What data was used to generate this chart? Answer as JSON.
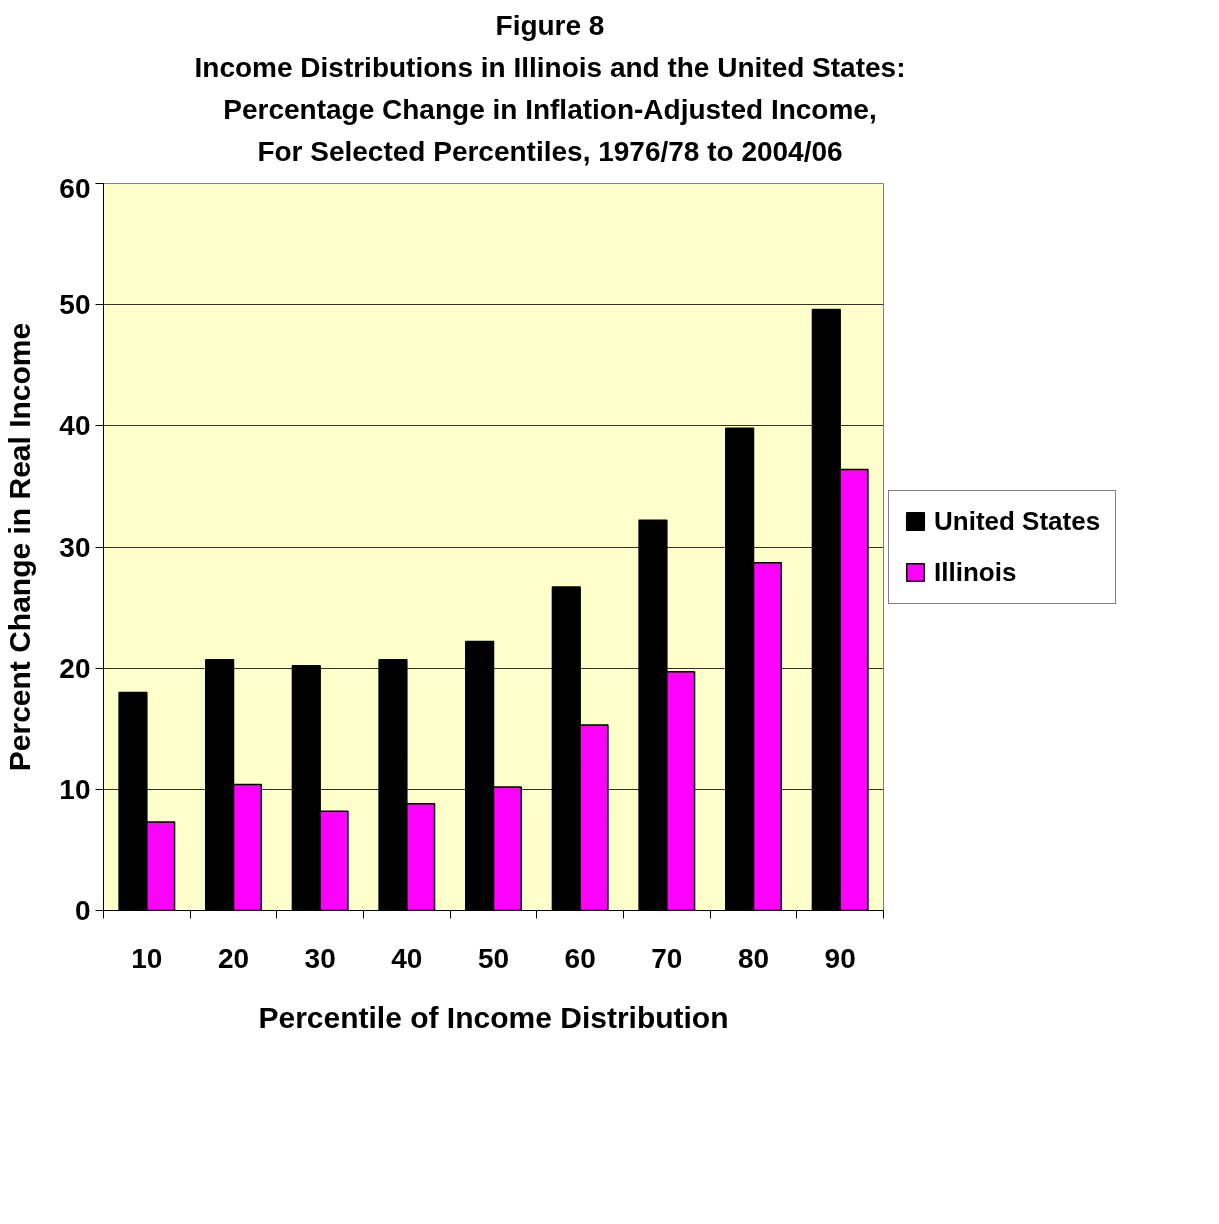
{
  "chart_data": {
    "type": "bar",
    "title": "Figure 8",
    "subtitle": "Income Distributions in Illinois and the United States:\nPercentage Change in Inflation-Adjusted Income,\nFor Selected Percentiles, 1976/78 to 2004/06",
    "xlabel": "Percentile of Income Distribution",
    "ylabel": "Percent Change in Real Income",
    "categories": [
      "10",
      "20",
      "30",
      "40",
      "50",
      "60",
      "70",
      "80",
      "90"
    ],
    "series": [
      {
        "name": "United States",
        "color": "#000000",
        "values": [
          18.0,
          20.7,
          20.2,
          20.7,
          22.2,
          26.7,
          32.2,
          39.8,
          49.6
        ]
      },
      {
        "name": "Illinois",
        "color": "#ff00ff",
        "values": [
          7.3,
          10.4,
          8.2,
          8.8,
          10.2,
          15.3,
          19.7,
          28.7,
          36.4
        ]
      }
    ],
    "ylim": [
      0,
      60
    ],
    "yticks": [
      0,
      10,
      20,
      30,
      40,
      50,
      60
    ],
    "grid": "y",
    "legend": "right"
  }
}
